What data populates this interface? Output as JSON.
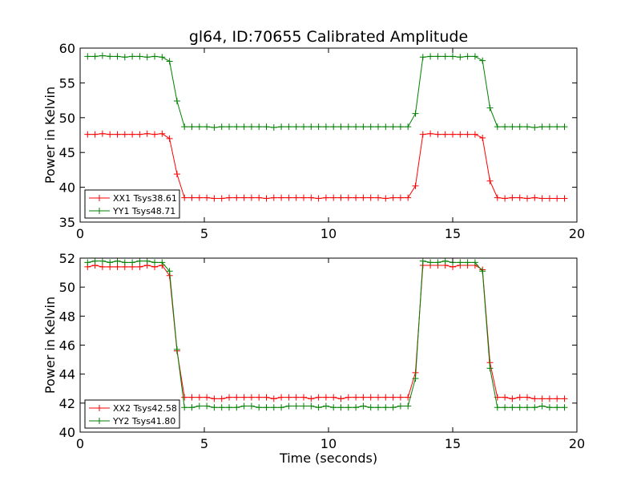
{
  "chart_data": [
    {
      "type": "line",
      "title": "gl64, ID:70655 Calibrated Amplitude",
      "xlabel": "",
      "ylabel": "Power in Kelvin",
      "xlim": [
        0,
        20
      ],
      "ylim": [
        35,
        60
      ],
      "xticks": [
        0,
        5,
        10,
        15,
        20
      ],
      "yticks": [
        35,
        40,
        45,
        50,
        55,
        60
      ],
      "legend_position": "lower-left",
      "grid": false,
      "series": [
        {
          "name": "XX1 Tsys38.61",
          "color": "#ff0000",
          "x": [
            0.3,
            0.6,
            0.9,
            1.2,
            1.5,
            1.8,
            2.1,
            2.4,
            2.7,
            3.0,
            3.3,
            3.6,
            3.9,
            4.2,
            4.5,
            4.8,
            5.1,
            5.4,
            5.7,
            6.0,
            6.3,
            6.6,
            6.9,
            7.2,
            7.5,
            7.8,
            8.1,
            8.4,
            8.7,
            9.0,
            9.3,
            9.6,
            9.9,
            10.2,
            10.5,
            10.8,
            11.1,
            11.4,
            11.7,
            12.0,
            12.3,
            12.6,
            12.9,
            13.2,
            13.5,
            13.8,
            14.1,
            14.4,
            14.7,
            15.0,
            15.3,
            15.6,
            15.9,
            16.2,
            16.5,
            16.8,
            17.1,
            17.4,
            17.7,
            18.0,
            18.3,
            18.6,
            18.9,
            19.2,
            19.5
          ],
          "y": [
            47.6,
            47.6,
            47.7,
            47.6,
            47.6,
            47.6,
            47.6,
            47.6,
            47.7,
            47.6,
            47.7,
            47.0,
            41.9,
            38.5,
            38.5,
            38.5,
            38.5,
            38.4,
            38.4,
            38.5,
            38.5,
            38.5,
            38.5,
            38.5,
            38.4,
            38.5,
            38.5,
            38.5,
            38.5,
            38.5,
            38.5,
            38.4,
            38.5,
            38.5,
            38.5,
            38.5,
            38.5,
            38.5,
            38.5,
            38.5,
            38.4,
            38.5,
            38.5,
            38.5,
            40.2,
            47.6,
            47.7,
            47.6,
            47.6,
            47.6,
            47.6,
            47.6,
            47.6,
            47.1,
            40.9,
            38.5,
            38.4,
            38.5,
            38.5,
            38.4,
            38.5,
            38.4,
            38.4,
            38.4,
            38.4
          ]
        },
        {
          "name": "YY1 Tsys48.71",
          "color": "#008000",
          "x": [
            0.3,
            0.6,
            0.9,
            1.2,
            1.5,
            1.8,
            2.1,
            2.4,
            2.7,
            3.0,
            3.3,
            3.6,
            3.9,
            4.2,
            4.5,
            4.8,
            5.1,
            5.4,
            5.7,
            6.0,
            6.3,
            6.6,
            6.9,
            7.2,
            7.5,
            7.8,
            8.1,
            8.4,
            8.7,
            9.0,
            9.3,
            9.6,
            9.9,
            10.2,
            10.5,
            10.8,
            11.1,
            11.4,
            11.7,
            12.0,
            12.3,
            12.6,
            12.9,
            13.2,
            13.5,
            13.8,
            14.1,
            14.4,
            14.7,
            15.0,
            15.3,
            15.6,
            15.9,
            16.2,
            16.5,
            16.8,
            17.1,
            17.4,
            17.7,
            18.0,
            18.3,
            18.6,
            18.9,
            19.2,
            19.5
          ],
          "y": [
            58.8,
            58.8,
            58.9,
            58.8,
            58.8,
            58.7,
            58.8,
            58.8,
            58.7,
            58.8,
            58.7,
            58.1,
            52.4,
            48.7,
            48.7,
            48.7,
            48.7,
            48.6,
            48.7,
            48.7,
            48.7,
            48.7,
            48.7,
            48.7,
            48.7,
            48.6,
            48.7,
            48.7,
            48.7,
            48.7,
            48.7,
            48.7,
            48.7,
            48.7,
            48.7,
            48.7,
            48.7,
            48.7,
            48.7,
            48.7,
            48.7,
            48.7,
            48.7,
            48.7,
            50.6,
            58.7,
            58.8,
            58.8,
            58.8,
            58.8,
            58.7,
            58.8,
            58.8,
            58.2,
            51.4,
            48.7,
            48.7,
            48.7,
            48.7,
            48.7,
            48.6,
            48.7,
            48.7,
            48.7,
            48.7
          ]
        }
      ]
    },
    {
      "type": "line",
      "title": "",
      "xlabel": "Time (seconds)",
      "ylabel": "Power in Kelvin",
      "xlim": [
        0,
        20
      ],
      "ylim": [
        40,
        52
      ],
      "xticks": [
        0,
        5,
        10,
        15,
        20
      ],
      "yticks": [
        40,
        42,
        44,
        46,
        48,
        50,
        52
      ],
      "legend_position": "lower-left",
      "grid": false,
      "series": [
        {
          "name": "XX2 Tsys42.58",
          "color": "#ff0000",
          "x": [
            0.3,
            0.6,
            0.9,
            1.2,
            1.5,
            1.8,
            2.1,
            2.4,
            2.7,
            3.0,
            3.3,
            3.6,
            3.9,
            4.2,
            4.5,
            4.8,
            5.1,
            5.4,
            5.7,
            6.0,
            6.3,
            6.6,
            6.9,
            7.2,
            7.5,
            7.8,
            8.1,
            8.4,
            8.7,
            9.0,
            9.3,
            9.6,
            9.9,
            10.2,
            10.5,
            10.8,
            11.1,
            11.4,
            11.7,
            12.0,
            12.3,
            12.6,
            12.9,
            13.2,
            13.5,
            13.8,
            14.1,
            14.4,
            14.7,
            15.0,
            15.3,
            15.6,
            15.9,
            16.2,
            16.5,
            16.8,
            17.1,
            17.4,
            17.7,
            18.0,
            18.3,
            18.6,
            18.9,
            19.2,
            19.5
          ],
          "y": [
            51.4,
            51.5,
            51.4,
            51.4,
            51.4,
            51.4,
            51.4,
            51.4,
            51.5,
            51.4,
            51.5,
            50.8,
            45.6,
            42.4,
            42.4,
            42.4,
            42.4,
            42.3,
            42.3,
            42.4,
            42.4,
            42.4,
            42.4,
            42.4,
            42.4,
            42.3,
            42.4,
            42.4,
            42.4,
            42.4,
            42.3,
            42.4,
            42.4,
            42.4,
            42.3,
            42.4,
            42.4,
            42.4,
            42.4,
            42.4,
            42.4,
            42.4,
            42.4,
            42.4,
            44.1,
            51.5,
            51.5,
            51.5,
            51.5,
            51.4,
            51.5,
            51.5,
            51.5,
            51.2,
            44.8,
            42.4,
            42.4,
            42.3,
            42.4,
            42.4,
            42.3,
            42.3,
            42.3,
            42.3,
            42.3
          ]
        },
        {
          "name": "YY2 Tsys41.80",
          "color": "#008000",
          "x": [
            0.3,
            0.6,
            0.9,
            1.2,
            1.5,
            1.8,
            2.1,
            2.4,
            2.7,
            3.0,
            3.3,
            3.6,
            3.9,
            4.2,
            4.5,
            4.8,
            5.1,
            5.4,
            5.7,
            6.0,
            6.3,
            6.6,
            6.9,
            7.2,
            7.5,
            7.8,
            8.1,
            8.4,
            8.7,
            9.0,
            9.3,
            9.6,
            9.9,
            10.2,
            10.5,
            10.8,
            11.1,
            11.4,
            11.7,
            12.0,
            12.3,
            12.6,
            12.9,
            13.2,
            13.5,
            13.8,
            14.1,
            14.4,
            14.7,
            15.0,
            15.3,
            15.6,
            15.9,
            16.2,
            16.5,
            16.8,
            17.1,
            17.4,
            17.7,
            18.0,
            18.3,
            18.6,
            18.9,
            19.2,
            19.5
          ],
          "y": [
            51.7,
            51.8,
            51.8,
            51.7,
            51.8,
            51.7,
            51.7,
            51.8,
            51.8,
            51.7,
            51.7,
            51.1,
            45.7,
            41.7,
            41.7,
            41.8,
            41.8,
            41.7,
            41.7,
            41.7,
            41.7,
            41.8,
            41.8,
            41.7,
            41.7,
            41.7,
            41.7,
            41.8,
            41.8,
            41.8,
            41.8,
            41.7,
            41.8,
            41.7,
            41.7,
            41.7,
            41.7,
            41.8,
            41.7,
            41.7,
            41.7,
            41.7,
            41.8,
            41.8,
            43.7,
            51.8,
            51.7,
            51.7,
            51.8,
            51.7,
            51.7,
            51.7,
            51.7,
            51.1,
            44.4,
            41.7,
            41.7,
            41.7,
            41.7,
            41.7,
            41.7,
            41.8,
            41.7,
            41.7,
            41.7
          ]
        }
      ]
    }
  ]
}
